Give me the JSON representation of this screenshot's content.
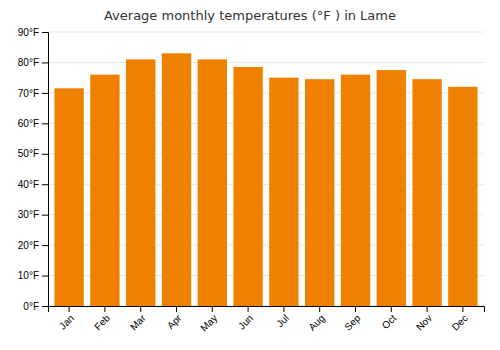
{
  "chart_data": {
    "type": "bar",
    "title": "Average monthly temperatures (°F ) in Lame",
    "categories": [
      "Jan",
      "Feb",
      "Mar",
      "Apr",
      "May",
      "Jun",
      "Jul",
      "Aug",
      "Sep",
      "Oct",
      "Nov",
      "Dec"
    ],
    "values": [
      71.5,
      76.0,
      81.0,
      83.0,
      81.0,
      78.5,
      75.0,
      74.5,
      76.0,
      77.5,
      74.5,
      72.0
    ],
    "color": "#F08000",
    "ylim": [
      0,
      90
    ],
    "yticks": [
      {
        "value": 0,
        "label": "0°F"
      },
      {
        "value": 10,
        "label": "10°F"
      },
      {
        "value": 20,
        "label": "20°F"
      },
      {
        "value": 30,
        "label": "30°F"
      },
      {
        "value": 40,
        "label": "40°F"
      },
      {
        "value": 50,
        "label": "50°F"
      },
      {
        "value": 60,
        "label": "60°F"
      },
      {
        "value": 70,
        "label": "70°F"
      },
      {
        "value": 80,
        "label": "80°F"
      },
      {
        "value": 90,
        "label": "90°F"
      }
    ],
    "grid": true
  }
}
